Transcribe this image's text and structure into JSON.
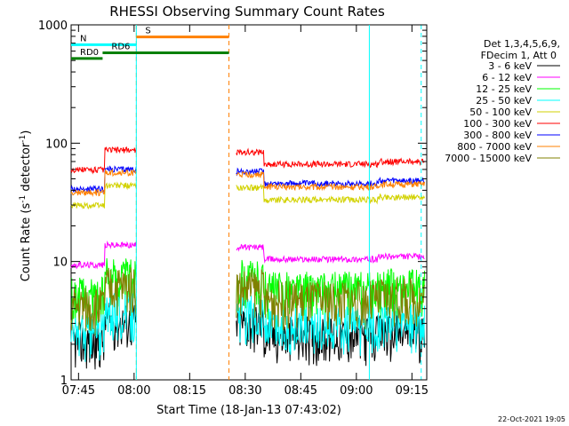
{
  "chart_data": {
    "type": "line",
    "title": "RHESSI Observing Summary Count Rates",
    "xlabel": "Start Time (18-Jan-13 07:43:02)",
    "ylabel_main": "Count Rate (s",
    "ylabel_sup1": "-1",
    "ylabel_mid": " detector",
    "ylabel_sup2": "-1",
    "ylabel_end": ")",
    "footer_date": "22-Oct-2021 19:05",
    "y_scale": "log",
    "ylim": [
      1,
      1000
    ],
    "xlim_minutes": [
      0,
      96
    ],
    "x_ticks": [
      {
        "m": 2,
        "label": "07:45"
      },
      {
        "m": 17,
        "label": "08:00"
      },
      {
        "m": 32,
        "label": "08:15"
      },
      {
        "m": 47,
        "label": "08:30"
      },
      {
        "m": 62,
        "label": "08:45"
      },
      {
        "m": 77,
        "label": "09:00"
      },
      {
        "m": 92,
        "label": "09:15"
      }
    ],
    "y_ticks": [
      {
        "v": 1,
        "label": "1"
      },
      {
        "v": 10,
        "label": "10"
      },
      {
        "v": 100,
        "label": "100"
      },
      {
        "v": 1000,
        "label": "1000"
      }
    ],
    "legend_header": [
      "Det 1,3,4,5,6,9,",
      "FDecim 1, Att 0"
    ],
    "legend_position": "right",
    "series": [
      {
        "name": "3 - 6 keV",
        "color": "#000000",
        "level": 2.5
      },
      {
        "name": "6 - 12 keV",
        "color": "#ff00ff",
        "level": 11
      },
      {
        "name": "12 - 25 keV",
        "color": "#00ff00",
        "level": 6
      },
      {
        "name": "25 - 50 keV",
        "color": "#00ffff",
        "level": 3
      },
      {
        "name": "50 - 100 keV",
        "color": "#d2d200",
        "level": 35
      },
      {
        "name": "100 - 300 keV",
        "color": "#ff0000",
        "level": 70
      },
      {
        "name": "300 - 800 keV",
        "color": "#0000ff",
        "level": 48
      },
      {
        "name": "800 - 7000 keV",
        "color": "#ff8000",
        "level": 45
      },
      {
        "name": "7000 - 15000 keV",
        "color": "#808000",
        "level": 5
      }
    ],
    "segments": [
      [
        0,
        17.6
      ],
      [
        44.6,
        95.4
      ]
    ],
    "state_bars": [
      {
        "label": "S",
        "color": "#ff8000",
        "start_min": 17.6,
        "end_min": 42.6,
        "level": 790
      },
      {
        "label": "N",
        "color": "#00ffff",
        "start_min": 0,
        "end_min": 17.6,
        "level": 680
      },
      {
        "label": "RD0",
        "color": "#008000",
        "start_min": 0,
        "end_min": 8.5,
        "level": 520
      },
      {
        "label": "RD6",
        "color": "#008000",
        "start_min": 8.5,
        "end_min": 42.6,
        "level": 580
      }
    ],
    "vertical_markers": [
      {
        "min": 17.6,
        "color": "#ff8000",
        "dash": true
      },
      {
        "min": 42.6,
        "color": "#ff8000",
        "dash": true
      },
      {
        "min": 17.6,
        "color": "#00ffff",
        "dash": false
      },
      {
        "min": 80.5,
        "color": "#00ffff",
        "dash": false
      },
      {
        "min": 94.5,
        "color": "#00ffff",
        "dash": true
      }
    ]
  }
}
